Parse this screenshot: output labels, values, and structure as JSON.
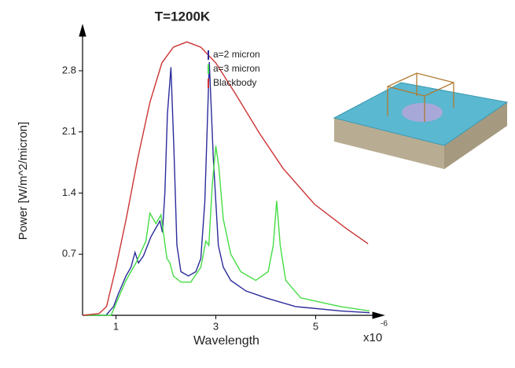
{
  "chart_data": {
    "type": "line",
    "title": "T=1200K",
    "x_label": "Wavelength",
    "x_multiplier": "x10",
    "x_multiplier_exponent": "-6",
    "y_label": "Power [W/m^2/micron]",
    "xlim": [
      0.33,
      6.08
    ],
    "ylim": [
      0,
      3.25
    ],
    "xticks": [
      1,
      3,
      5
    ],
    "yticks": [
      0.7,
      1.4,
      2.1,
      2.8
    ],
    "legend": "top",
    "series": [
      {
        "name": "a=2 micron",
        "color": "#2b2b9c",
        "x": [
          0.33,
          0.8,
          0.95,
          1.05,
          1.2,
          1.3,
          1.38,
          1.45,
          1.55,
          1.7,
          1.8,
          1.88,
          1.93,
          1.98,
          2.03,
          2.1,
          2.16,
          2.22,
          2.3,
          2.45,
          2.6,
          2.7,
          2.78,
          2.87,
          2.95,
          3.05,
          3.15,
          3.3,
          3.6,
          4.0,
          4.6,
          5.5,
          6.08
        ],
        "values": [
          0,
          0,
          0.1,
          0.25,
          0.45,
          0.55,
          0.72,
          0.6,
          0.68,
          0.9,
          1.0,
          1.08,
          0.95,
          1.4,
          2.3,
          2.84,
          1.9,
          0.8,
          0.5,
          0.45,
          0.5,
          0.65,
          1.3,
          2.9,
          1.8,
          0.8,
          0.55,
          0.4,
          0.28,
          0.2,
          0.1,
          0.05,
          0.03
        ]
      },
      {
        "name": "a=3 micron",
        "color": "#44dd44",
        "x": [
          0.33,
          0.9,
          1.05,
          1.2,
          1.4,
          1.6,
          1.68,
          1.75,
          1.8,
          1.9,
          1.96,
          2.02,
          2.08,
          2.15,
          2.3,
          2.5,
          2.7,
          2.8,
          2.86,
          2.93,
          3.0,
          3.06,
          3.15,
          3.3,
          3.5,
          3.8,
          4.05,
          4.15,
          4.22,
          4.29,
          4.4,
          4.7,
          5.5,
          6.08
        ],
        "values": [
          0,
          0,
          0.2,
          0.4,
          0.6,
          0.85,
          1.17,
          1.1,
          1.05,
          1.15,
          0.9,
          0.65,
          0.6,
          0.45,
          0.38,
          0.38,
          0.55,
          0.85,
          0.8,
          1.5,
          1.94,
          1.7,
          1.1,
          0.7,
          0.5,
          0.4,
          0.5,
          0.8,
          1.31,
          0.8,
          0.4,
          0.2,
          0.1,
          0.05
        ]
      },
      {
        "name": "Blackbody",
        "color": "#cc3333",
        "x": [
          0.33,
          0.66,
          0.81,
          1.0,
          1.2,
          1.44,
          1.68,
          1.92,
          2.15,
          2.42,
          2.7,
          3.0,
          3.4,
          3.88,
          4.35,
          4.98,
          5.6,
          6.05
        ],
        "values": [
          0,
          0.02,
          0.1,
          0.55,
          1.09,
          1.81,
          2.44,
          2.89,
          3.07,
          3.13,
          3.07,
          2.89,
          2.53,
          2.08,
          1.68,
          1.27,
          1.0,
          0.82
        ]
      }
    ]
  }
}
